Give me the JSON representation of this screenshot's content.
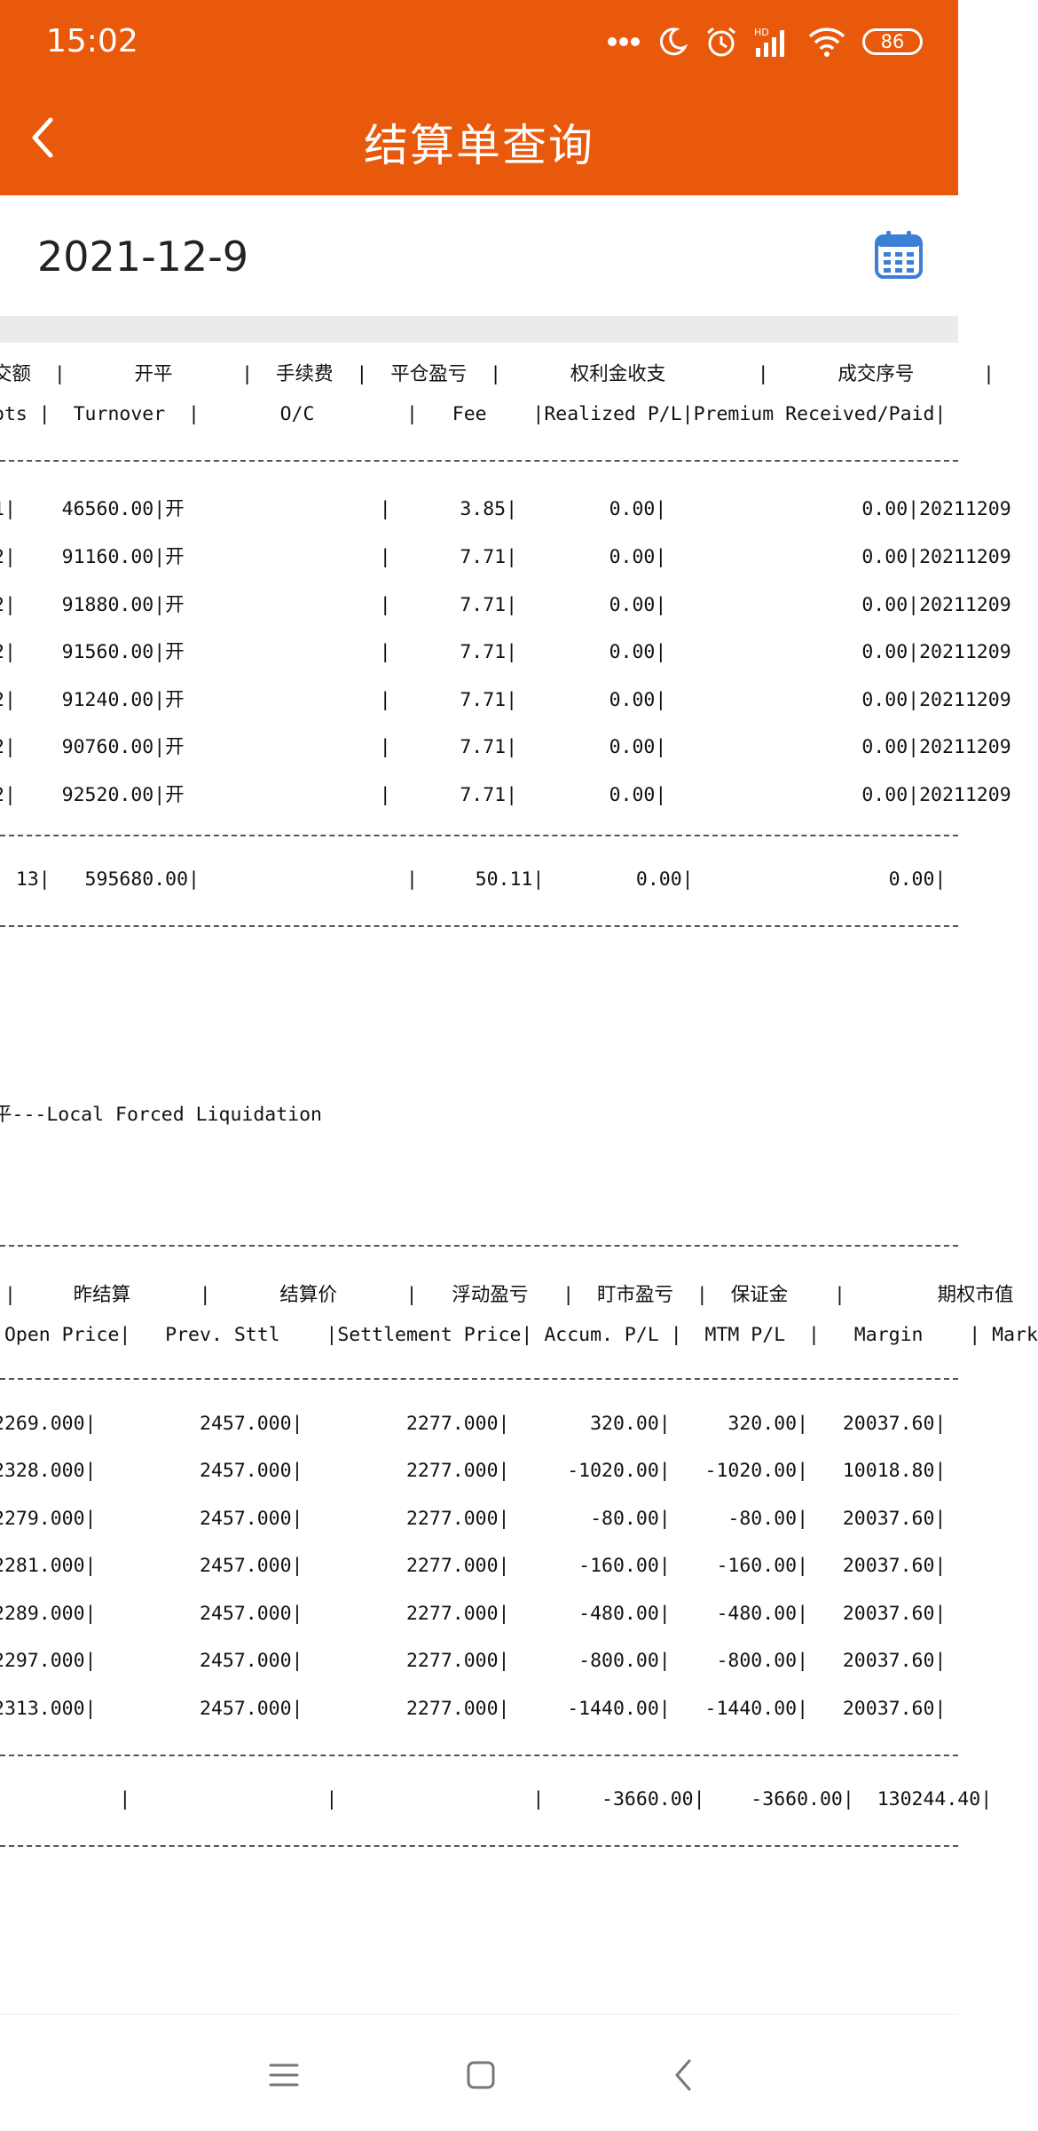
{
  "status": {
    "time": "15:02",
    "battery": "86"
  },
  "header": {
    "title": "结算单查询"
  },
  "date": {
    "value": "2021-12-9"
  },
  "statement": {
    "trade_header_cn": "交额  |      开平      |  手续费  |  平仓盈亏  |      权利金收支        |      成交序号      |",
    "trade_header_en": "ots |  Turnover  |       O/C        |   Fee    |Realized P/L|Premium Received/Paid|",
    "trade_rows": [
      "1|    46560.00|开                 |      3.85|        0.00|                 0.00|20211209",
      "2|    91160.00|开                 |      7.71|        0.00|                 0.00|20211209",
      "2|    91880.00|开                 |      7.71|        0.00|                 0.00|20211209",
      "2|    91560.00|开                 |      7.71|        0.00|                 0.00|20211209",
      "2|    91240.00|开                 |      7.71|        0.00|                 0.00|20211209",
      "2|    90760.00|开                 |      7.71|        0.00|                 0.00|20211209",
      "2|    92520.00|开                 |      7.71|        0.00|                 0.00|20211209"
    ],
    "trade_total": "  13|   595680.00|                  |     50.11|        0.00|                 0.00|",
    "note": "平---Local Forced Liquidation",
    "pos_header_cn": " |     昨结算      |      结算价      |   浮动盈亏   |  盯市盈亏  |  保证金    |        期权市值",
    "pos_header_en": " Open Price|   Prev. Sttl    |Settlement Price| Accum. P/L |  MTM P/L  |   Margin    | Mark",
    "pos_rows": [
      "2269.000|         2457.000|         2277.000|       320.00|     320.00|   20037.60|",
      "2328.000|         2457.000|         2277.000|     -1020.00|   -1020.00|   10018.80|",
      "2279.000|         2457.000|         2277.000|       -80.00|     -80.00|   20037.60|",
      "2281.000|         2457.000|         2277.000|      -160.00|    -160.00|   20037.60|",
      "2289.000|         2457.000|         2277.000|      -480.00|    -480.00|   20037.60|",
      "2297.000|         2457.000|         2277.000|      -800.00|    -800.00|   20037.60|",
      "2313.000|         2457.000|         2277.000|     -1440.00|   -1440.00|   20037.60|"
    ],
    "pos_total": "           |                 |                 |     -3660.00|    -3660.00|  130244.40|"
  },
  "colors": {
    "accent": "#e9590b",
    "calendar": "#3d7fd6"
  }
}
